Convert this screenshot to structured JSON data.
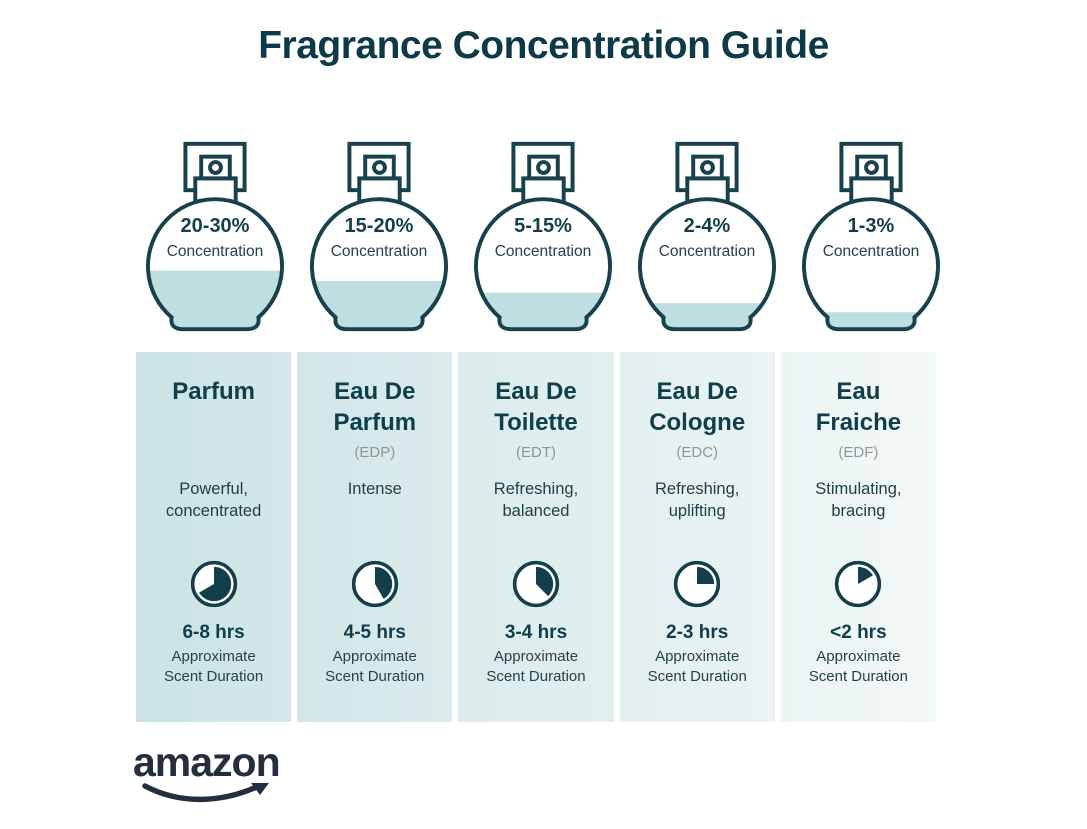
{
  "title": "Fragrance Concentration Guide",
  "labels": {
    "concentration": "Concentration",
    "approximate": "Approximate",
    "scent_duration": "Scent Duration"
  },
  "brand": {
    "logo_text": "amazon"
  },
  "colors": {
    "title_text": "#0d3a46",
    "bottle_outline": "#17414d",
    "liquid": "#bedee0",
    "name_text": "#0f3e4c",
    "abbr_text": "#8d989a",
    "body_text": "#1e4049",
    "amazon_logo": "#232f3e",
    "gap": "#ffffff"
  },
  "columns": [
    {
      "name": "Parfum",
      "abbr": "",
      "concentration_range": "20-30%",
      "description": "Powerful, concentrated",
      "duration": "6-8 hrs",
      "fill_percent": 45,
      "clock_degrees": 240,
      "bg_from": "#cbe3e5",
      "bg_to": "#d2e7e8"
    },
    {
      "name": "Eau De Parfum",
      "abbr": "(EDP)",
      "concentration_range": "15-20%",
      "description": "Intense",
      "duration": "4-5 hrs",
      "fill_percent": 37,
      "clock_degrees": 150,
      "bg_from": "#d3e7e8",
      "bg_to": "#daebec"
    },
    {
      "name": "Eau De Toilette",
      "abbr": "(EDT)",
      "concentration_range": "5-15%",
      "description": "Refreshing, balanced",
      "duration": "3-4 hrs",
      "fill_percent": 28,
      "clock_degrees": 135,
      "bg_from": "#dbecec",
      "bg_to": "#e2efef"
    },
    {
      "name": "Eau De Cologne",
      "abbr": "(EDC)",
      "concentration_range": "2-4%",
      "description": "Refreshing, uplifting",
      "duration": "2-3 hrs",
      "fill_percent": 20,
      "clock_degrees": 90,
      "bg_from": "#e3f0f0",
      "bg_to": "#eaf3f3"
    },
    {
      "name": "Eau Fraiche",
      "abbr": "(EDF)",
      "concentration_range": "1-3%",
      "description": "Stimulating, bracing",
      "duration": "<2 hrs",
      "fill_percent": 13,
      "clock_degrees": 60,
      "bg_from": "#ebf4f4",
      "bg_to": "#f3f8f8"
    }
  ]
}
